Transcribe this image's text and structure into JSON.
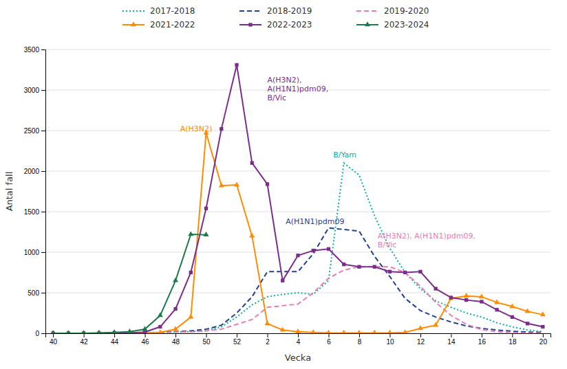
{
  "chart_data": {
    "type": "line",
    "xlabel": "Vecka",
    "ylabel": "Antal fall",
    "categories": [
      "40",
      null,
      "42",
      null,
      "44",
      null,
      "46",
      null,
      "48",
      null,
      "50",
      null,
      "52",
      null,
      "2",
      null,
      "4",
      null,
      "6",
      null,
      "8",
      null,
      "10",
      null,
      "12",
      null,
      "14",
      null,
      "16",
      null,
      "18",
      null,
      "20"
    ],
    "ylim": [
      0,
      3500
    ],
    "yticks": [
      0,
      500,
      1000,
      1500,
      2000,
      2500,
      3000,
      3500
    ],
    "grid": true,
    "legend": "top",
    "series": [
      {
        "name": "2017-2018",
        "color": "#00B0A0",
        "line_style": "dotted",
        "values": [
          0,
          0,
          0,
          0,
          5,
          5,
          10,
          10,
          15,
          20,
          30,
          80,
          200,
          350,
          450,
          480,
          500,
          480,
          650,
          2100,
          1950,
          1450,
          1050,
          750,
          550,
          400,
          320,
          250,
          200,
          130,
          80,
          40,
          20
        ]
      },
      {
        "name": "2018-2019",
        "color": "#1F3D99",
        "line_style": "dashed",
        "values": [
          0,
          0,
          0,
          0,
          5,
          5,
          5,
          10,
          20,
          30,
          50,
          100,
          250,
          450,
          760,
          760,
          760,
          980,
          1300,
          1280,
          1260,
          950,
          700,
          430,
          280,
          200,
          140,
          90,
          60,
          40,
          25,
          15,
          10
        ]
      },
      {
        "name": "2019-2020",
        "color": "#E87DB0",
        "line_style": "dashed",
        "values": [
          0,
          0,
          0,
          0,
          5,
          5,
          5,
          10,
          15,
          20,
          30,
          50,
          110,
          170,
          320,
          340,
          360,
          500,
          680,
          780,
          820,
          820,
          820,
          750,
          580,
          380,
          220,
          110,
          45,
          20,
          8,
          3,
          2
        ]
      },
      {
        "name": "2021-2022",
        "color": "#FF8C00",
        "line_style": "solid",
        "marker": "triangle",
        "values": [
          0,
          0,
          0,
          0,
          0,
          0,
          5,
          10,
          50,
          200,
          2470,
          1820,
          1830,
          1200,
          120,
          40,
          20,
          10,
          5,
          5,
          5,
          5,
          5,
          10,
          60,
          100,
          430,
          460,
          450,
          380,
          330,
          270,
          230
        ]
      },
      {
        "name": "2022-2023",
        "color": "#7B2D8B",
        "line_style": "solid",
        "marker": "square",
        "values": [
          0,
          0,
          0,
          0,
          5,
          5,
          15,
          80,
          300,
          750,
          1540,
          2520,
          3310,
          2100,
          1840,
          650,
          960,
          1020,
          1040,
          850,
          820,
          820,
          760,
          750,
          760,
          550,
          440,
          410,
          390,
          290,
          200,
          120,
          80
        ]
      },
      {
        "name": "2023-2024",
        "color": "#1B7A4A",
        "line_style": "solid",
        "marker": "triangle",
        "values": [
          0,
          0,
          0,
          5,
          10,
          20,
          50,
          220,
          650,
          1220,
          1215,
          null,
          null,
          null,
          null,
          null,
          null,
          null,
          null,
          null,
          null,
          null,
          null,
          null,
          null,
          null,
          null,
          null,
          null,
          null,
          null,
          null,
          null
        ]
      }
    ],
    "annotations": [
      {
        "text": "A(H3N2)",
        "x": 8.3,
        "y": 2490,
        "color": "#FF8C00"
      },
      {
        "text": "A(H3N2),\nA(H1N1)pdm09,\nB/Vic",
        "x": 14.0,
        "y": 2870,
        "color": "#7B2D8B"
      },
      {
        "text": "B/Yam",
        "x": 18.3,
        "y": 2170,
        "color": "#00B0A0"
      },
      {
        "text": "A(H1N1)pdm09",
        "x": 15.2,
        "y": 1350,
        "color": "#1F3D99"
      },
      {
        "text": "A(H3N2), A(H1N1)pdm09,\nB/Vic",
        "x": 21.2,
        "y": 1060,
        "color": "#E87DB0"
      }
    ]
  }
}
